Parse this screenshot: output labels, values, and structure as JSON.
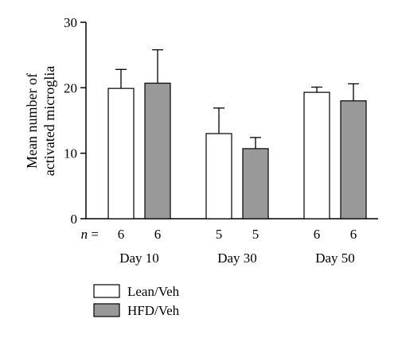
{
  "chart_data": {
    "type": "bar",
    "ylabel_lines": [
      "Mean number of",
      "activated microglia"
    ],
    "xlabel": "",
    "ylim": [
      0,
      30
    ],
    "yticks": [
      0,
      10,
      20,
      30
    ],
    "ytick_labels": [
      "0",
      "10",
      "20",
      "30"
    ],
    "categories": [
      "Day 10",
      "Day 30",
      "Day 50"
    ],
    "n_prefix": "n = ",
    "series": [
      {
        "name": "Lean/Veh",
        "color": "#ffffff",
        "values": [
          19.9,
          13.0,
          19.3
        ],
        "errors": [
          2.9,
          3.9,
          0.8
        ],
        "n": [
          "6",
          "5",
          "6"
        ]
      },
      {
        "name": "HFD/Veh",
        "color": "#999999",
        "values": [
          20.7,
          10.7,
          18.0
        ],
        "errors": [
          5.1,
          1.7,
          2.6
        ],
        "n": [
          "6",
          "5",
          "6"
        ]
      }
    ],
    "legend_position": "bottom-left",
    "grid": false
  }
}
